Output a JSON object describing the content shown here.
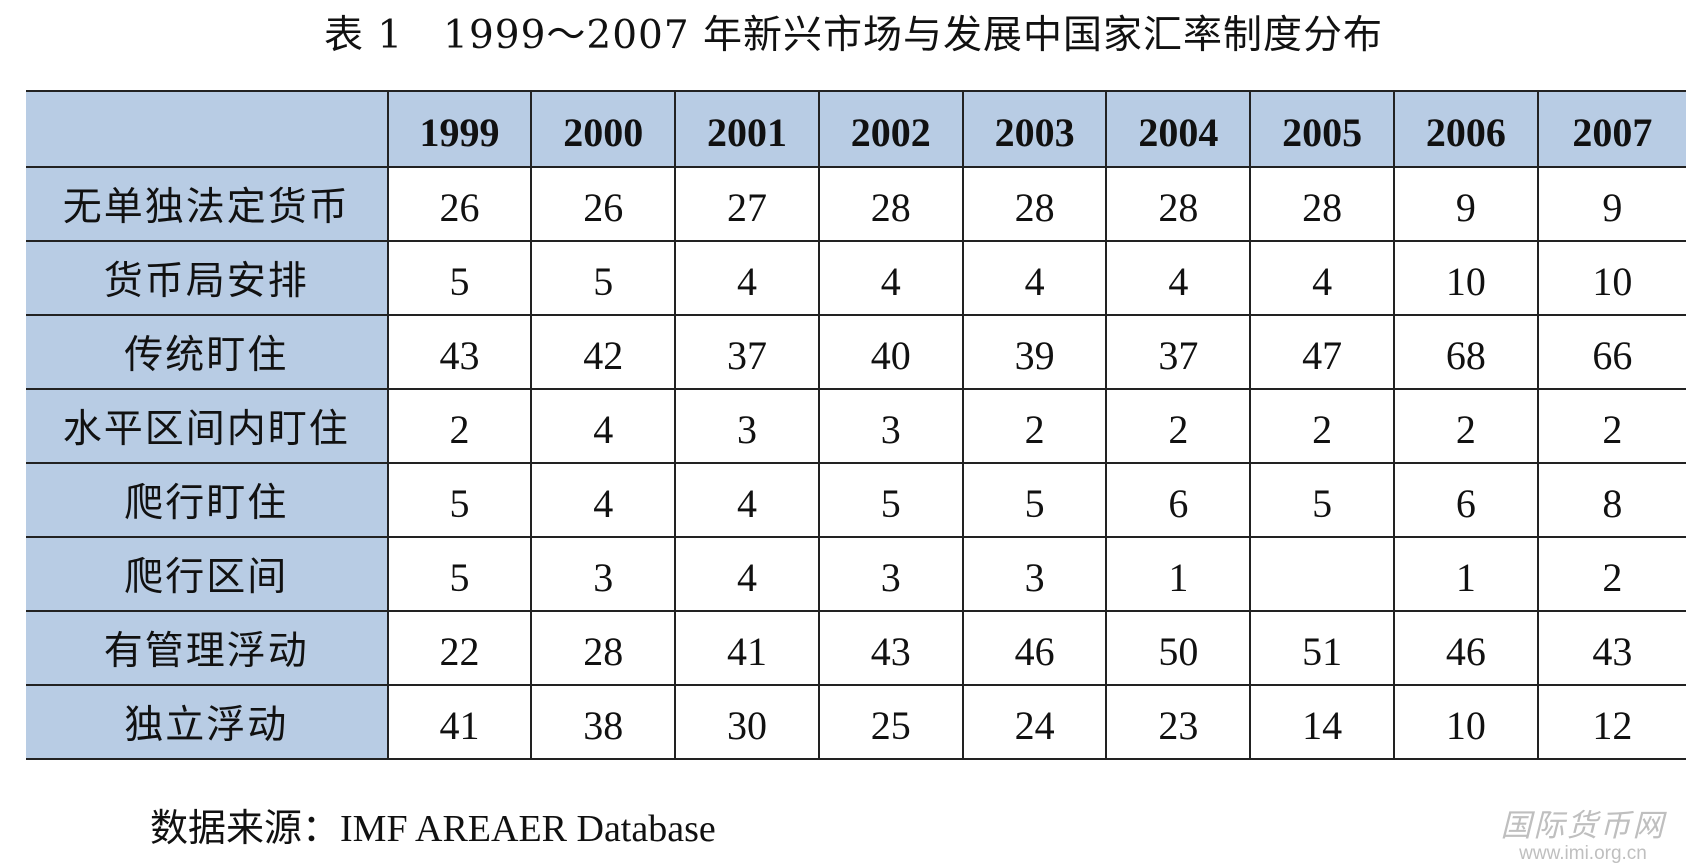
{
  "title": "表 1　1999～2007 年新兴市场与发展中国家汇率制度分布",
  "table": {
    "years": [
      "1999",
      "2000",
      "2001",
      "2002",
      "2003",
      "2004",
      "2005",
      "2006",
      "2007"
    ],
    "rows": [
      {
        "label": "无单独法定货币",
        "values": [
          "26",
          "26",
          "27",
          "28",
          "28",
          "28",
          "28",
          "9",
          "9"
        ]
      },
      {
        "label": "货币局安排",
        "values": [
          "5",
          "5",
          "4",
          "4",
          "4",
          "4",
          "4",
          "10",
          "10"
        ]
      },
      {
        "label": "传统盯住",
        "values": [
          "43",
          "42",
          "37",
          "40",
          "39",
          "37",
          "47",
          "68",
          "66"
        ]
      },
      {
        "label": "水平区间内盯住",
        "values": [
          "2",
          "4",
          "3",
          "3",
          "2",
          "2",
          "2",
          "2",
          "2"
        ]
      },
      {
        "label": "爬行盯住",
        "values": [
          "5",
          "4",
          "4",
          "5",
          "5",
          "6",
          "5",
          "6",
          "8"
        ]
      },
      {
        "label": "爬行区间",
        "values": [
          "5",
          "3",
          "4",
          "3",
          "3",
          "1",
          "",
          "1",
          "2"
        ]
      },
      {
        "label": "有管理浮动",
        "values": [
          "22",
          "28",
          "41",
          "43",
          "46",
          "50",
          "51",
          "46",
          "43"
        ]
      },
      {
        "label": "独立浮动",
        "values": [
          "41",
          "38",
          "30",
          "25",
          "24",
          "23",
          "14",
          "10",
          "12"
        ]
      }
    ]
  },
  "source": {
    "label": "数据来源：",
    "text": "IMF AREAER Database"
  },
  "watermark": {
    "name": "国际货币网",
    "url": "www.imi.org.cn"
  },
  "colors": {
    "header_fill": "#b8cce4",
    "border": "#222222"
  }
}
